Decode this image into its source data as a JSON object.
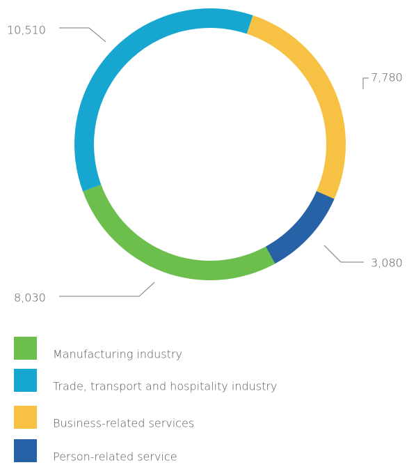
{
  "chart_data": {
    "type": "donut",
    "series": [
      {
        "name": "Manufacturing industry",
        "color": "#6cbf4d",
        "values": [
          8030
        ],
        "value_labels": [
          "8,030"
        ]
      },
      {
        "name": "Trade, transport and hospitality industry",
        "color": "#17a6cf",
        "values": [
          10510
        ],
        "value_labels": [
          "10,510"
        ]
      },
      {
        "name": "Business-related services",
        "color": "#f7c244",
        "values": [
          7780
        ],
        "value_labels": [
          "7,780"
        ]
      },
      {
        "name": "Person-related service",
        "color": "#2761a6",
        "values": [
          3080
        ],
        "value_labels": [
          "3,080"
        ]
      }
    ]
  }
}
